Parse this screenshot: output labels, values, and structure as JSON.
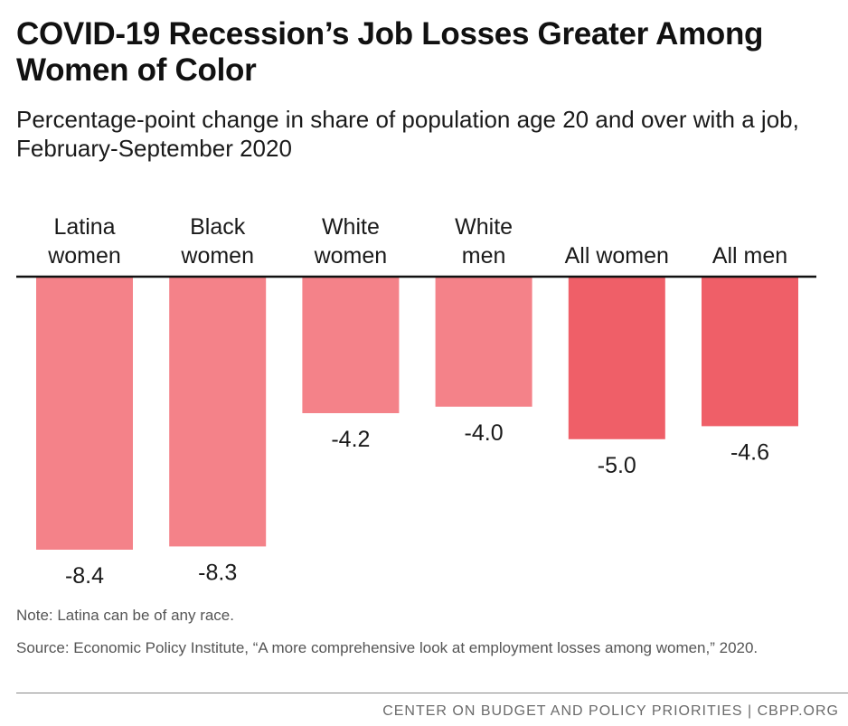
{
  "header": {
    "title": "COVID-19 Recession’s Job Losses Greater Among Women of Color",
    "subtitle": "Percentage-point change in share of population age 20 and over with a job, February-September 2020"
  },
  "chart_data": {
    "type": "bar",
    "title": "COVID-19 Recession’s Job Losses Greater Among Women of Color",
    "subtitle": "Percentage-point change in share of population age 20 and over with a job, February-September 2020",
    "categories": [
      [
        "Latina",
        "women"
      ],
      [
        "Black",
        "women"
      ],
      [
        "White",
        "women"
      ],
      [
        "White",
        "men"
      ],
      [
        "All women"
      ],
      [
        "All men"
      ]
    ],
    "values": [
      -8.4,
      -8.3,
      -4.2,
      -4.0,
      -5.0,
      -4.6
    ],
    "value_labels": [
      "-8.4",
      "-8.3",
      "-4.2",
      "-4.0",
      "-5.0",
      "-4.6"
    ],
    "colors": [
      "#f48289",
      "#f48289",
      "#f48289",
      "#f48289",
      "#ef5f68",
      "#ef5f68"
    ],
    "ylim": [
      -8.4,
      0
    ],
    "xlabel": "",
    "ylabel": "",
    "grid": false,
    "legend": "none"
  },
  "notes": {
    "note": "Note: Latina can be of any race.",
    "source": "Source: Economic Policy Institute, “A more comprehensive look at employment losses among women,” 2020."
  },
  "footer": {
    "text": "CENTER ON BUDGET AND POLICY PRIORITIES | CBPP.ORG"
  }
}
